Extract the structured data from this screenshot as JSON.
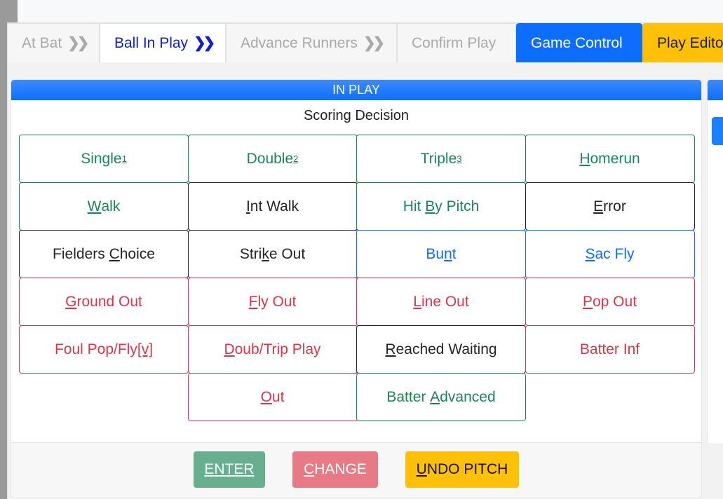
{
  "tabs": [
    {
      "label": "At Bat",
      "chevron": "❯❯",
      "state": "inactive"
    },
    {
      "label": "Ball In Play",
      "chevron": "❯❯",
      "state": "active"
    },
    {
      "label": "Advance Runners",
      "chevron": "❯❯",
      "state": "inactive"
    },
    {
      "label": "Confirm Play",
      "chevron": "",
      "state": "inactive"
    },
    {
      "label": "Game Control",
      "chevron": "",
      "state": "primary"
    },
    {
      "label": "Play Editor",
      "chevron": "",
      "state": "warning"
    }
  ],
  "panel": {
    "title": "IN PLAY",
    "subtitle": "Scoring Decision"
  },
  "colors": {
    "success": "#198754",
    "dark": "#212529",
    "primary": "#0d6efd",
    "danger": "#dc3545",
    "warning": "#ffc107"
  },
  "buttons": [
    {
      "pre": "Single",
      "key": "",
      "post": "",
      "sup": "1",
      "variant": "success",
      "row": 0,
      "col": 0
    },
    {
      "pre": "Double",
      "key": "",
      "post": "",
      "sup": "2",
      "variant": "success",
      "row": 0,
      "col": 1
    },
    {
      "pre": "Triple",
      "key": "",
      "post": "",
      "sup": "3",
      "variant": "success",
      "row": 0,
      "col": 2
    },
    {
      "pre": "",
      "key": "H",
      "post": "omerun",
      "sup": "",
      "variant": "success",
      "row": 0,
      "col": 3
    },
    {
      "pre": "",
      "key": "W",
      "post": "alk",
      "sup": "",
      "variant": "success",
      "row": 1,
      "col": 0
    },
    {
      "pre": "",
      "key": "I",
      "post": "nt Walk",
      "sup": "",
      "variant": "dark",
      "row": 1,
      "col": 1
    },
    {
      "pre": "Hit ",
      "key": "B",
      "post": "y Pitch",
      "sup": "",
      "variant": "success",
      "row": 1,
      "col": 2
    },
    {
      "pre": "",
      "key": "E",
      "post": "rror",
      "sup": "",
      "variant": "dark",
      "row": 1,
      "col": 3
    },
    {
      "pre": "Fielders ",
      "key": "C",
      "post": "hoice",
      "sup": "",
      "variant": "dark",
      "row": 2,
      "col": 0
    },
    {
      "pre": "Stri",
      "key": "k",
      "post": "e Out",
      "sup": "",
      "variant": "dark",
      "row": 2,
      "col": 1
    },
    {
      "pre": "Bu",
      "key": "n",
      "post": "t",
      "sup": "",
      "variant": "primary",
      "row": 2,
      "col": 2
    },
    {
      "pre": "",
      "key": "S",
      "post": "ac Fly",
      "sup": "",
      "variant": "primary",
      "row": 2,
      "col": 3
    },
    {
      "pre": "",
      "key": "G",
      "post": "round Out",
      "sup": "",
      "variant": "danger",
      "row": 3,
      "col": 0
    },
    {
      "pre": "",
      "key": "F",
      "post": "ly Out",
      "sup": "",
      "variant": "danger",
      "row": 3,
      "col": 1
    },
    {
      "pre": "",
      "key": "L",
      "post": "ine Out",
      "sup": "",
      "variant": "danger",
      "row": 3,
      "col": 2
    },
    {
      "pre": "",
      "key": "P",
      "post": "op Out",
      "sup": "",
      "variant": "danger",
      "row": 3,
      "col": 3
    },
    {
      "pre": "Foul Pop/Fly",
      "key": "[v]",
      "post": "",
      "sup": "",
      "variant": "danger",
      "row": 4,
      "col": 0
    },
    {
      "pre": "",
      "key": "D",
      "post": "oub/Trip Play",
      "sup": "",
      "variant": "danger",
      "row": 4,
      "col": 1
    },
    {
      "pre": "",
      "key": "R",
      "post": "eached Waiting",
      "sup": "",
      "variant": "dark",
      "row": 4,
      "col": 2
    },
    {
      "pre": "Batter Inf",
      "key": "",
      "post": "",
      "sup": "",
      "variant": "danger",
      "row": 4,
      "col": 3
    },
    {
      "pre": "",
      "key": "O",
      "post": "ut",
      "sup": "",
      "variant": "danger",
      "row": 5,
      "col": 1
    },
    {
      "pre": "Batter ",
      "key": "A",
      "post": "dvanced",
      "sup": "",
      "variant": "success",
      "row": 5,
      "col": 2
    }
  ],
  "footer": {
    "enter": {
      "key": "ENTER",
      "post": "",
      "color": "#66b08f"
    },
    "change": {
      "key": "C",
      "post": "HANGE",
      "color": "#e77a84"
    },
    "undo": {
      "key": "U",
      "post": "NDO PITCH",
      "color": "#ffc107"
    }
  }
}
